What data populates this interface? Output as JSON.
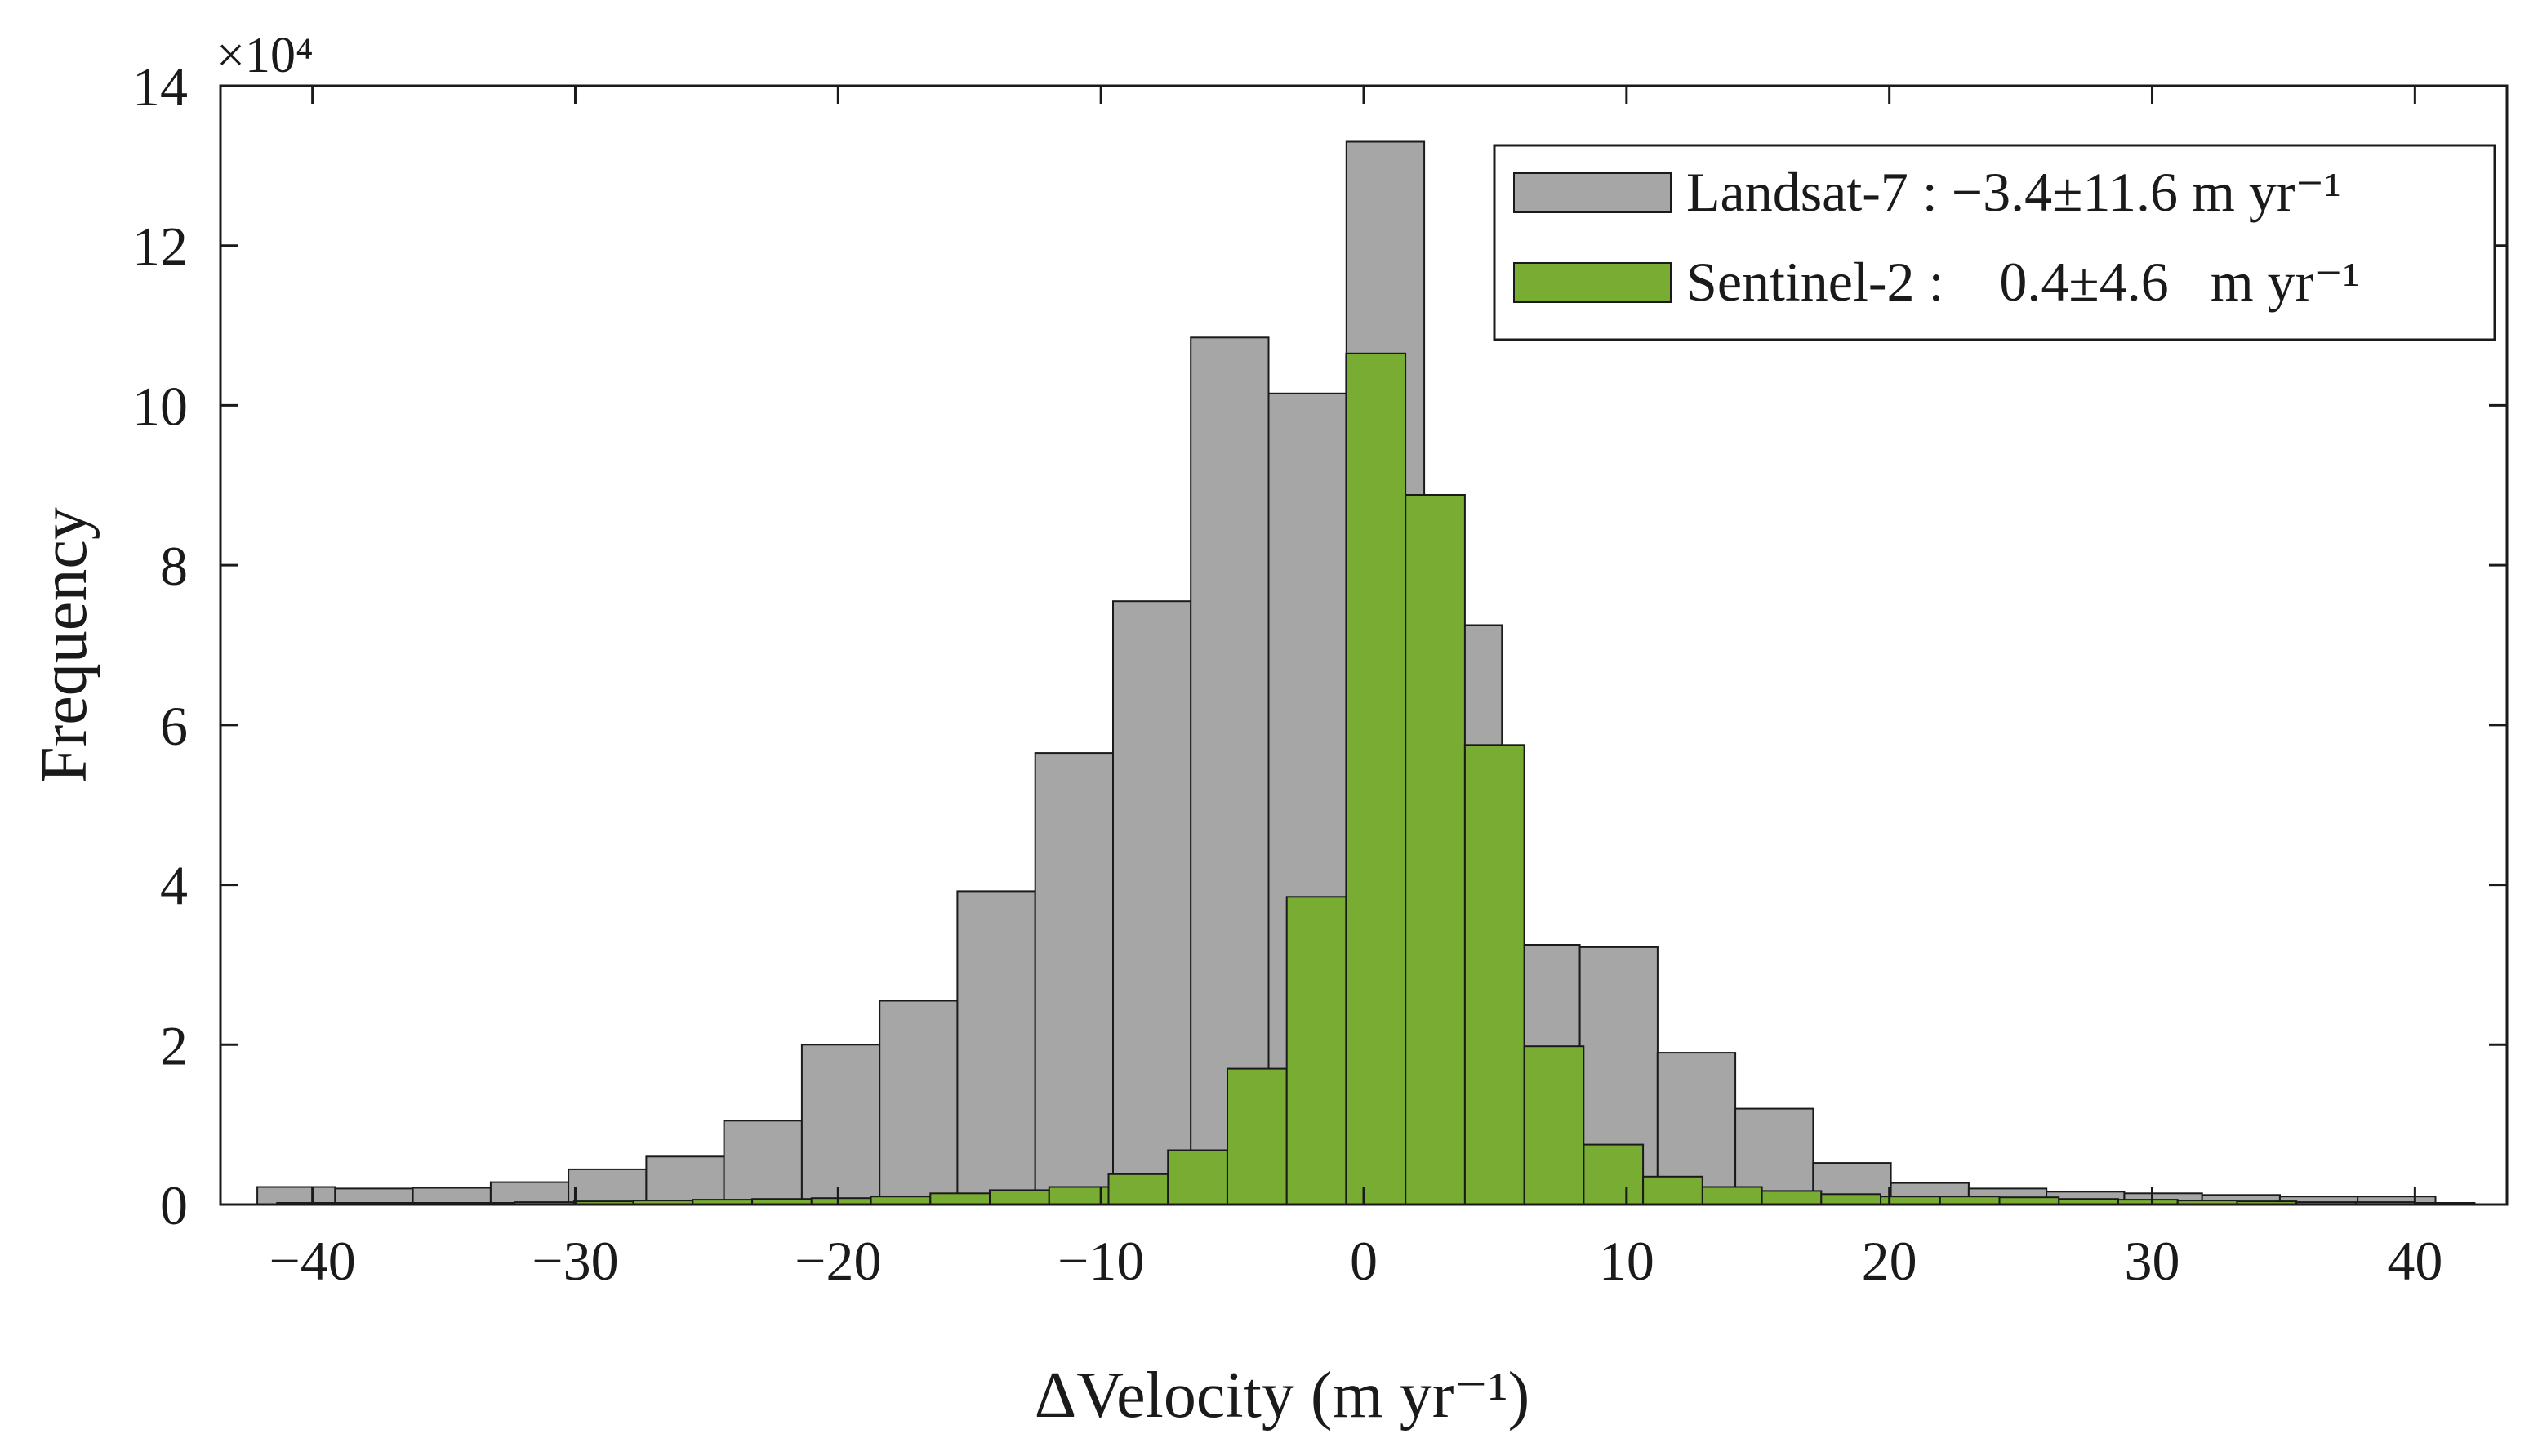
{
  "chart_data": {
    "type": "bar",
    "title": "",
    "xlabel": "ΔVelocity (m yr⁻¹)",
    "ylabel": "Frequency",
    "y_multiplier": "×10⁴",
    "xlim": [
      -43.5,
      43.5
    ],
    "ylim": [
      0,
      14
    ],
    "xticks": [
      -40,
      -30,
      -20,
      -10,
      0,
      10,
      20,
      30,
      40
    ],
    "xtick_labels": [
      "−40",
      "−30",
      "−20",
      "−10",
      "0",
      "10",
      "20",
      "30",
      "40"
    ],
    "yticks": [
      0,
      2,
      4,
      6,
      8,
      10,
      12,
      14
    ],
    "ytick_labels": [
      "0",
      "2",
      "4",
      "6",
      "8",
      "10",
      "12",
      "14"
    ],
    "legend_position": "top-right",
    "series": [
      {
        "name": "Landsat-7",
        "legend_label": "Landsat-7 : −3.4±11.6 m yr⁻¹",
        "color": "#a6a6a6",
        "bin_start": -42.1,
        "bin_width": 2.96,
        "values": [
          0.22,
          0.2,
          0.21,
          0.28,
          0.44,
          0.6,
          1.05,
          2.0,
          2.55,
          3.92,
          5.65,
          7.55,
          10.85,
          10.15,
          13.3,
          7.25,
          3.25,
          3.22,
          1.9,
          1.2,
          0.52,
          0.27,
          0.2,
          0.16,
          0.14,
          0.12,
          0.1,
          0.1
        ]
      },
      {
        "name": "Sentinel-2",
        "legend_label": "Sentinel-2 :    0.4±4.6   m yr⁻¹",
        "color": "#78ac32",
        "bin_start": -41.35,
        "bin_width": 2.26,
        "values": [
          0.02,
          0.02,
          0.02,
          0.02,
          0.03,
          0.04,
          0.05,
          0.06,
          0.07,
          0.08,
          0.1,
          0.14,
          0.18,
          0.22,
          0.38,
          0.68,
          1.7,
          3.85,
          10.65,
          8.88,
          5.75,
          1.98,
          0.75,
          0.35,
          0.22,
          0.17,
          0.13,
          0.1,
          0.1,
          0.09,
          0.07,
          0.06,
          0.05,
          0.04,
          0.03,
          0.03,
          0.02
        ]
      }
    ]
  }
}
